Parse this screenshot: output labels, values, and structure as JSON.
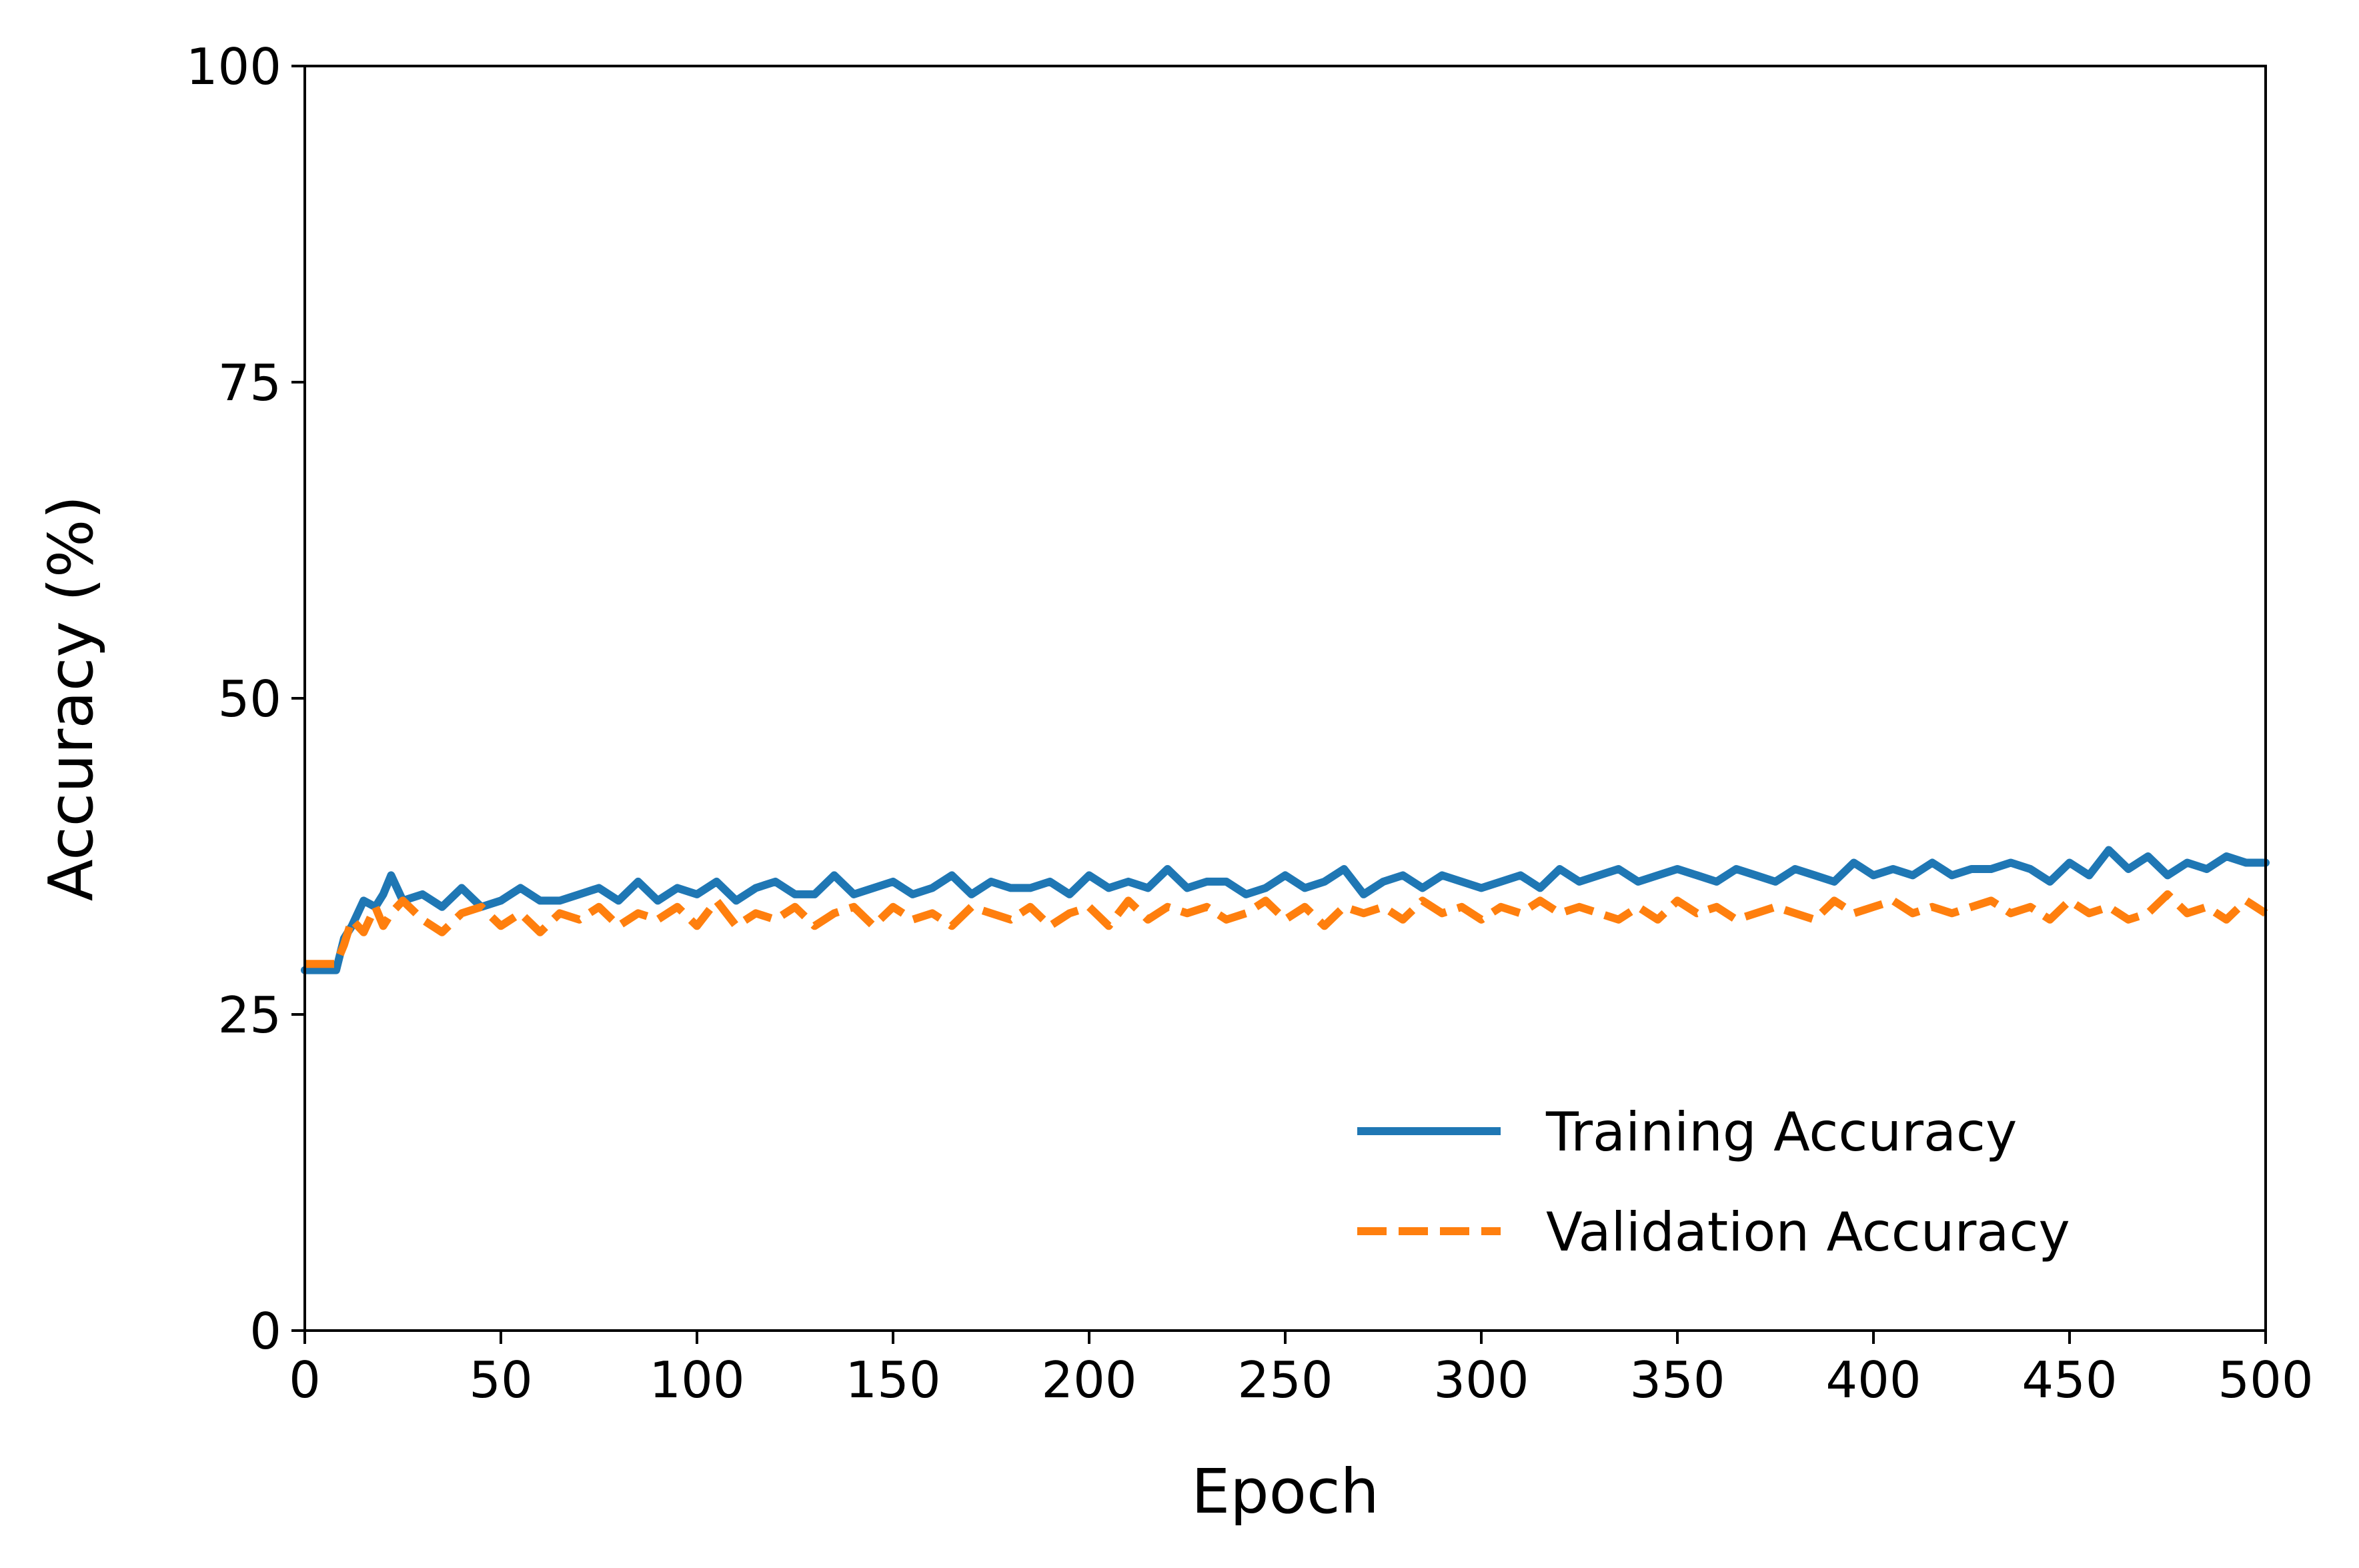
{
  "chart_data": {
    "type": "line",
    "title": "",
    "xlabel": "Epoch",
    "ylabel": "Accuracy (%)",
    "xlim": [
      0,
      500
    ],
    "ylim": [
      0,
      100
    ],
    "xticks": [
      0,
      50,
      100,
      150,
      200,
      250,
      300,
      350,
      400,
      450,
      500
    ],
    "yticks": [
      0,
      25,
      50,
      75,
      100
    ],
    "grid": false,
    "legend_position": "lower-right",
    "series": [
      {
        "name": "Training Accuracy",
        "color": "#1f77b4",
        "line_style": "solid",
        "x": [
          0,
          5,
          8,
          10,
          12,
          15,
          18,
          20,
          22,
          25,
          30,
          35,
          40,
          45,
          50,
          55,
          60,
          65,
          70,
          75,
          80,
          85,
          90,
          95,
          100,
          105,
          110,
          115,
          120,
          125,
          130,
          135,
          140,
          145,
          150,
          155,
          160,
          165,
          170,
          175,
          180,
          185,
          190,
          195,
          200,
          205,
          210,
          215,
          220,
          225,
          230,
          235,
          240,
          245,
          250,
          255,
          260,
          265,
          270,
          275,
          280,
          285,
          290,
          295,
          300,
          305,
          310,
          315,
          320,
          325,
          330,
          335,
          340,
          345,
          350,
          355,
          360,
          365,
          370,
          375,
          380,
          385,
          390,
          395,
          400,
          405,
          410,
          415,
          420,
          425,
          430,
          435,
          440,
          445,
          450,
          455,
          460,
          465,
          470,
          475,
          480,
          485,
          490,
          495,
          500
        ],
        "values": [
          28.5,
          28.5,
          28.5,
          31.0,
          32.0,
          34.0,
          33.5,
          34.5,
          36.0,
          34.0,
          34.5,
          33.5,
          35.0,
          33.5,
          34.0,
          35.0,
          34.0,
          34.0,
          34.5,
          35.0,
          34.0,
          35.5,
          34.0,
          35.0,
          34.5,
          35.5,
          34.0,
          35.0,
          35.5,
          34.5,
          34.5,
          36.0,
          34.5,
          35.0,
          35.5,
          34.5,
          35.0,
          36.0,
          34.5,
          35.5,
          35.0,
          35.0,
          35.5,
          34.5,
          36.0,
          35.0,
          35.5,
          35.0,
          36.5,
          35.0,
          35.5,
          35.5,
          34.5,
          35.0,
          36.0,
          35.0,
          35.5,
          36.5,
          34.5,
          35.5,
          36.0,
          35.0,
          36.0,
          35.5,
          35.0,
          35.5,
          36.0,
          35.0,
          36.5,
          35.5,
          36.0,
          36.5,
          35.5,
          36.0,
          36.5,
          36.0,
          35.5,
          36.5,
          36.0,
          35.5,
          36.5,
          36.0,
          35.5,
          37.0,
          36.0,
          36.5,
          36.0,
          37.0,
          36.0,
          36.5,
          36.5,
          37.0,
          36.5,
          35.5,
          37.0,
          36.0,
          38.0,
          36.5,
          37.5,
          36.0,
          37.0,
          36.5,
          37.5,
          37.0,
          37.0
        ]
      },
      {
        "name": "Validation Accuracy",
        "color": "#ff7f0e",
        "line_style": "dashed",
        "x": [
          0,
          5,
          8,
          10,
          12,
          15,
          18,
          20,
          22,
          25,
          30,
          35,
          40,
          45,
          50,
          55,
          60,
          65,
          70,
          75,
          80,
          85,
          90,
          95,
          100,
          105,
          110,
          115,
          120,
          125,
          130,
          135,
          140,
          145,
          150,
          155,
          160,
          165,
          170,
          175,
          180,
          185,
          190,
          195,
          200,
          205,
          210,
          215,
          220,
          225,
          230,
          235,
          240,
          245,
          250,
          255,
          260,
          265,
          270,
          275,
          280,
          285,
          290,
          295,
          300,
          305,
          310,
          315,
          320,
          325,
          330,
          335,
          340,
          345,
          350,
          355,
          360,
          365,
          370,
          375,
          380,
          385,
          390,
          395,
          400,
          405,
          410,
          415,
          420,
          425,
          430,
          435,
          440,
          445,
          450,
          455,
          460,
          465,
          470,
          475,
          480,
          485,
          490,
          495,
          500
        ],
        "values": [
          29.0,
          29.0,
          29.0,
          30.5,
          32.5,
          31.5,
          33.5,
          32.0,
          33.0,
          34.0,
          32.5,
          31.5,
          33.0,
          33.5,
          32.0,
          33.0,
          31.5,
          33.0,
          32.5,
          33.5,
          32.0,
          33.0,
          32.5,
          33.5,
          32.0,
          34.0,
          32.0,
          33.0,
          32.5,
          33.5,
          32.0,
          33.0,
          33.5,
          32.0,
          33.5,
          32.5,
          33.0,
          32.0,
          33.5,
          33.0,
          32.5,
          33.5,
          32.0,
          33.0,
          33.5,
          32.0,
          34.0,
          32.5,
          33.5,
          33.0,
          33.5,
          32.5,
          33.0,
          34.0,
          32.5,
          33.5,
          32.0,
          33.5,
          33.0,
          33.5,
          32.5,
          34.0,
          33.0,
          33.5,
          32.5,
          33.5,
          33.0,
          34.0,
          33.0,
          33.5,
          33.0,
          32.5,
          33.5,
          32.5,
          34.0,
          33.0,
          33.5,
          32.5,
          33.0,
          33.5,
          33.0,
          32.5,
          34.0,
          33.0,
          33.5,
          34.0,
          33.0,
          33.5,
          33.0,
          33.5,
          34.0,
          33.0,
          33.5,
          32.5,
          34.0,
          33.0,
          33.5,
          32.5,
          33.0,
          34.5,
          33.0,
          33.5,
          32.5,
          34.0,
          33.0
        ]
      }
    ]
  }
}
